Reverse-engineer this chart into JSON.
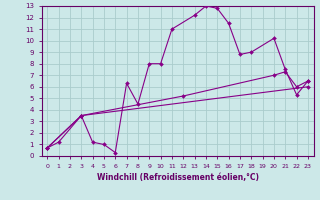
{
  "title": "",
  "xlabel": "Windchill (Refroidissement éolien,°C)",
  "ylabel": "",
  "bg_color": "#cce8e8",
  "line_color": "#880088",
  "grid_color": "#aacccc",
  "text_color": "#660066",
  "xlim": [
    -0.5,
    23.5
  ],
  "ylim": [
    0,
    13
  ],
  "xticks": [
    0,
    1,
    2,
    3,
    4,
    5,
    6,
    7,
    8,
    9,
    10,
    11,
    12,
    13,
    14,
    15,
    16,
    17,
    18,
    19,
    20,
    21,
    22,
    23
  ],
  "yticks": [
    0,
    1,
    2,
    3,
    4,
    5,
    6,
    7,
    8,
    9,
    10,
    11,
    12,
    13
  ],
  "series": [
    {
      "x": [
        0,
        1,
        3,
        4,
        5,
        6,
        7,
        8,
        9,
        10,
        11,
        13,
        14,
        15,
        16,
        17,
        18,
        20,
        21,
        22,
        23
      ],
      "y": [
        0.7,
        1.2,
        3.5,
        1.2,
        1.0,
        0.3,
        6.3,
        4.5,
        8.0,
        8.0,
        11.0,
        12.2,
        13.0,
        12.8,
        11.5,
        8.8,
        9.0,
        10.2,
        7.5,
        5.3,
        6.5
      ]
    },
    {
      "x": [
        0,
        3,
        12,
        20,
        21,
        22,
        23
      ],
      "y": [
        0.7,
        3.5,
        5.2,
        7.0,
        7.3,
        6.0,
        6.5
      ]
    },
    {
      "x": [
        0,
        3,
        23
      ],
      "y": [
        0.7,
        3.5,
        6.0
      ]
    }
  ]
}
